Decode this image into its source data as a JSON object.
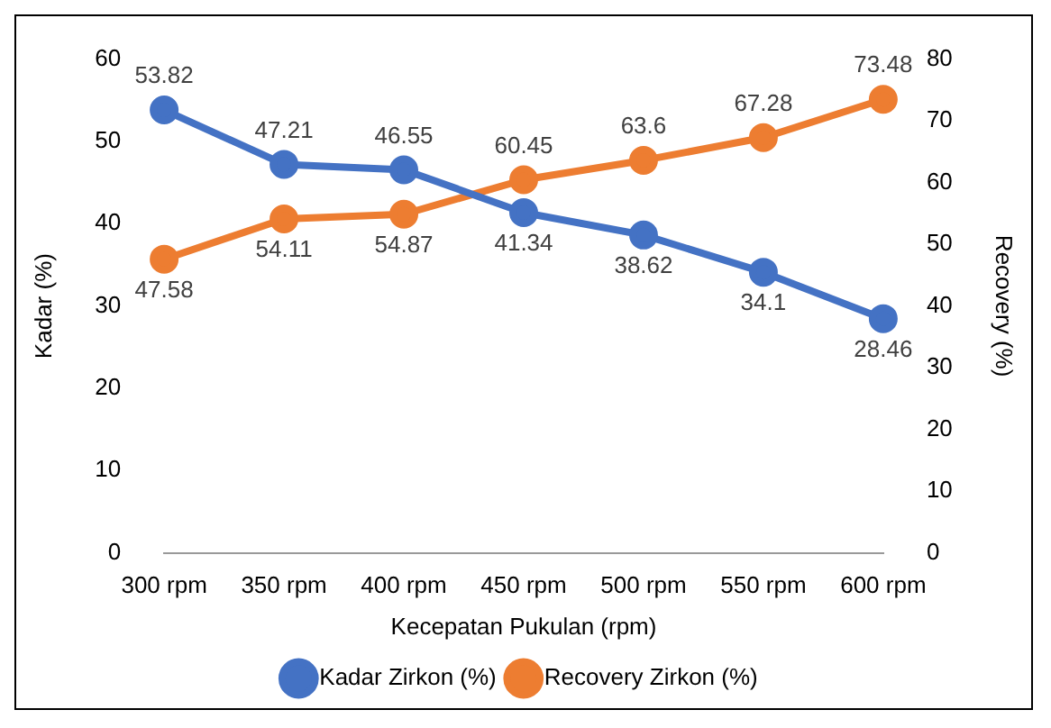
{
  "chart_data": {
    "type": "line",
    "xlabel": "Kecepatan Pukulan (rpm)",
    "ylabel": "Kadar (%)",
    "y2label": "Recovery (%)",
    "categories": [
      "300 rpm",
      "350 rpm",
      "400 rpm",
      "450 rpm",
      "500 rpm",
      "550 rpm",
      "600 rpm"
    ],
    "series": [
      {
        "name": "Kadar Zirkon (%)",
        "color": "#4472c4",
        "values": [
          53.82,
          47.21,
          46.55,
          41.34,
          38.62,
          34.1,
          28.46
        ]
      },
      {
        "name": "Recovery Zirkon (%)",
        "color": "#ed7d31",
        "axis": "y2",
        "values": [
          47.58,
          54.11,
          54.87,
          60.45,
          63.6,
          67.28,
          73.48
        ]
      }
    ],
    "ylim": [
      0,
      60
    ],
    "yticks": [
      0,
      10,
      20,
      30,
      40,
      50,
      60
    ],
    "y2lim": [
      0,
      80
    ],
    "y2ticks": [
      0,
      10,
      20,
      30,
      40,
      50,
      60,
      70,
      80
    ],
    "grid": false,
    "legend": "bottom",
    "marker": "circle",
    "line_style": "solid",
    "data_labels": true
  }
}
